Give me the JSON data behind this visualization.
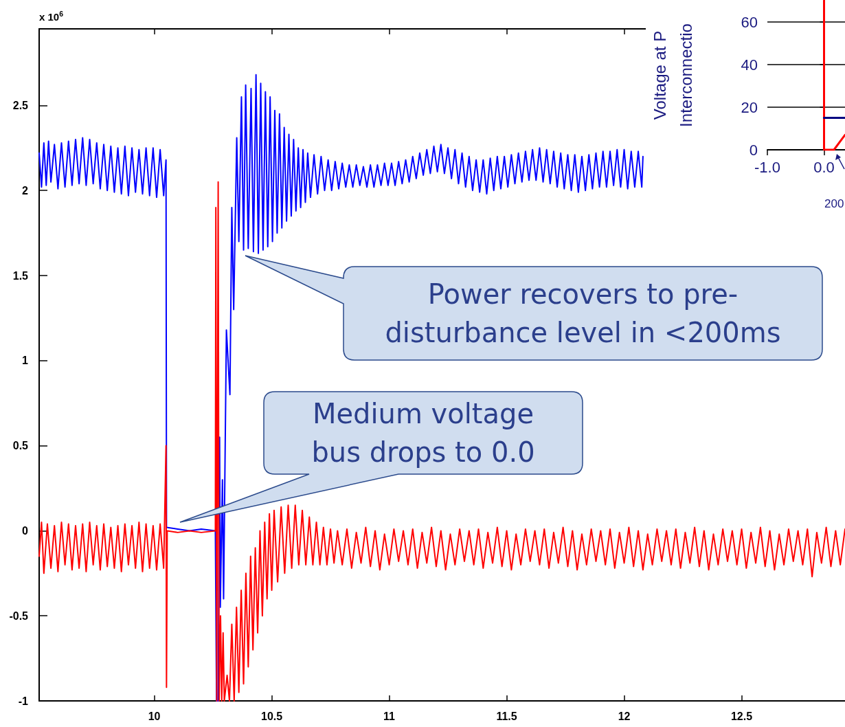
{
  "chart_data": [
    {
      "type": "line",
      "xlim": [
        9.51,
        12.94
      ],
      "xticks": [
        10,
        10.5,
        11,
        11.5,
        12,
        12.5
      ],
      "ylim": [
        -1,
        2.95
      ],
      "yticks": [
        -1,
        -0.5,
        0,
        0.5,
        1,
        1.5,
        2,
        2.5
      ],
      "marker": "none",
      "line_style": "solid",
      "annotations": [
        "x 10$^{6}$",
        "Power recovers to pre-disturbance level in <200ms",
        "Medium voltage bus drops to 0.0"
      ],
      "series": [
        {
          "color": "#0000ff",
          "x": [
            9.51,
            9.52,
            9.53,
            9.54,
            9.55,
            9.56,
            9.575,
            9.59,
            9.605,
            9.62,
            9.635,
            9.65,
            9.665,
            9.68,
            9.695,
            9.71,
            9.725,
            9.74,
            9.755,
            9.77,
            9.785,
            9.8,
            9.815,
            9.83,
            9.845,
            9.86,
            9.875,
            9.89,
            9.905,
            9.92,
            9.935,
            9.95,
            9.965,
            9.98,
            9.995,
            10.01,
            10.025,
            10.04,
            10.05,
            10.052,
            10.1,
            10.15,
            10.2,
            10.26,
            10.265,
            10.272,
            10.278,
            10.281,
            10.29,
            10.295,
            10.307,
            10.322,
            10.33,
            10.338,
            10.351,
            10.36,
            10.371,
            10.38,
            10.389,
            10.4,
            10.412,
            10.422,
            10.433,
            10.443,
            10.453,
            10.463,
            10.473,
            10.483,
            10.493,
            10.503,
            10.513,
            10.523,
            10.533,
            10.543,
            10.553,
            10.563,
            10.573,
            10.583,
            10.593,
            10.603,
            10.613,
            10.623,
            10.633,
            10.643,
            10.653,
            10.665,
            10.68,
            10.695,
            10.71,
            10.725,
            10.74,
            10.755,
            10.77,
            10.785,
            10.8,
            10.815,
            10.83,
            10.845,
            10.86,
            10.875,
            10.89,
            10.905,
            10.92,
            10.935,
            10.95,
            10.965,
            10.98,
            10.995,
            11.01,
            11.025,
            11.04,
            11.055,
            11.07,
            11.085,
            11.1,
            11.115,
            11.13,
            11.145,
            11.16,
            11.175,
            11.19,
            11.205,
            11.22,
            11.235,
            11.25,
            11.265,
            11.28,
            11.295,
            11.31,
            11.325,
            11.34,
            11.355,
            11.37,
            11.385,
            11.4,
            11.415,
            11.43,
            11.445,
            11.46,
            11.475,
            11.49,
            11.505,
            11.52,
            11.535,
            11.55,
            11.565,
            11.58,
            11.595,
            11.61,
            11.625,
            11.64,
            11.655,
            11.67,
            11.685,
            11.7,
            11.715,
            11.73,
            11.745,
            11.76,
            11.775,
            11.79,
            11.805,
            11.82,
            11.835,
            11.85,
            11.865,
            11.88,
            11.895,
            11.91,
            11.925,
            11.94,
            11.955,
            11.97,
            11.985,
            12.0,
            12.015,
            12.03,
            12.045,
            12.06,
            12.075,
            12.08
          ],
          "values": [
            2.22,
            2.02,
            2.28,
            2.03,
            2.29,
            2.05,
            2.27,
            2.01,
            2.28,
            2.02,
            2.29,
            2.03,
            2.3,
            2.04,
            2.31,
            2.03,
            2.3,
            2.04,
            2.28,
            2.01,
            2.27,
            2.0,
            2.26,
            1.99,
            2.25,
            1.98,
            2.26,
            1.97,
            2.25,
            1.99,
            2.24,
            1.98,
            2.25,
            1.97,
            2.25,
            1.96,
            2.24,
            1.97,
            2.18,
            0.02,
            0.01,
            0.0,
            0.01,
            0.0,
            -1.0,
            -1.0,
            0.55,
            -0.45,
            0.3,
            -0.4,
            1.18,
            0.8,
            1.9,
            1.3,
            2.31,
            1.7,
            2.55,
            1.65,
            2.62,
            1.66,
            2.6,
            1.64,
            2.68,
            1.63,
            2.63,
            1.65,
            2.58,
            1.67,
            2.55,
            1.7,
            2.47,
            1.75,
            2.45,
            1.78,
            2.37,
            1.82,
            2.33,
            1.85,
            2.3,
            1.88,
            2.25,
            1.9,
            2.24,
            1.93,
            2.22,
            1.96,
            2.21,
            1.98,
            2.2,
            2.0,
            2.18,
            2.0,
            2.17,
            2.01,
            2.16,
            2.02,
            2.15,
            2.02,
            2.15,
            2.03,
            2.14,
            2.02,
            2.15,
            2.02,
            2.15,
            2.03,
            2.16,
            2.03,
            2.16,
            2.03,
            2.17,
            2.04,
            2.18,
            2.05,
            2.2,
            2.07,
            2.22,
            2.09,
            2.24,
            2.1,
            2.26,
            2.11,
            2.27,
            2.1,
            2.25,
            2.07,
            2.24,
            2.04,
            2.22,
            2.02,
            2.2,
            2.0,
            2.18,
            1.99,
            2.18,
            1.98,
            2.19,
            2.0,
            2.2,
            2.01,
            2.2,
            2.02,
            2.21,
            2.04,
            2.22,
            2.05,
            2.23,
            2.06,
            2.24,
            2.06,
            2.25,
            2.05,
            2.24,
            2.04,
            2.23,
            2.02,
            2.22,
            2.01,
            2.21,
            2.0,
            2.21,
            1.99,
            2.2,
            2.0,
            2.21,
            2.01,
            2.22,
            2.02,
            2.23,
            2.02,
            2.23,
            2.03,
            2.24,
            2.02,
            2.24,
            2.01,
            2.23,
            2.02,
            2.23,
            2.02,
            2.2
          ]
        },
        {
          "color": "#ff0000",
          "x": [
            9.51,
            9.52,
            9.53,
            9.545,
            9.56,
            9.575,
            9.59,
            9.605,
            9.62,
            9.635,
            9.65,
            9.665,
            9.68,
            9.695,
            9.71,
            9.725,
            9.74,
            9.755,
            9.77,
            9.785,
            9.8,
            9.815,
            9.83,
            9.845,
            9.86,
            9.875,
            9.89,
            9.905,
            9.92,
            9.935,
            9.95,
            9.965,
            9.98,
            9.995,
            10.01,
            10.025,
            10.04,
            10.05,
            10.052,
            10.055,
            10.1,
            10.15,
            10.2,
            10.26,
            10.262,
            10.266,
            10.272,
            10.276,
            10.282,
            10.287,
            10.293,
            10.298,
            10.31,
            10.32,
            10.33,
            10.34,
            10.35,
            10.36,
            10.37,
            10.38,
            10.39,
            10.4,
            10.41,
            10.42,
            10.43,
            10.44,
            10.45,
            10.46,
            10.47,
            10.48,
            10.49,
            10.5,
            10.51,
            10.525,
            10.54,
            10.555,
            10.57,
            10.585,
            10.6,
            10.615,
            10.63,
            10.645,
            10.66,
            10.675,
            10.69,
            10.705,
            10.72,
            10.735,
            10.75,
            10.765,
            10.78,
            10.8,
            10.82,
            10.84,
            10.86,
            10.88,
            10.9,
            10.92,
            10.94,
            10.96,
            10.98,
            11.0,
            11.02,
            11.04,
            11.06,
            11.08,
            11.1,
            11.12,
            11.14,
            11.16,
            11.18,
            11.2,
            11.22,
            11.24,
            11.26,
            11.28,
            11.3,
            11.32,
            11.34,
            11.36,
            11.38,
            11.4,
            11.42,
            11.44,
            11.46,
            11.48,
            11.5,
            11.52,
            11.54,
            11.56,
            11.58,
            11.6,
            11.62,
            11.64,
            11.66,
            11.68,
            11.7,
            11.72,
            11.74,
            11.76,
            11.78,
            11.8,
            11.82,
            11.84,
            11.86,
            11.88,
            11.9,
            11.92,
            11.94,
            11.96,
            11.98,
            12.0,
            12.02,
            12.04,
            12.06,
            12.08,
            12.1,
            12.12,
            12.14,
            12.16,
            12.18,
            12.2,
            12.22,
            12.24,
            12.26,
            12.28,
            12.3,
            12.32,
            12.34,
            12.36,
            12.38,
            12.4,
            12.42,
            12.44,
            12.46,
            12.48,
            12.5,
            12.52,
            12.54,
            12.56,
            12.58,
            12.6,
            12.62,
            12.64,
            12.66,
            12.68,
            12.7,
            12.72,
            12.74,
            12.76,
            12.78,
            12.8,
            12.82,
            12.84,
            12.86,
            12.88,
            12.9,
            12.92,
            12.94
          ],
          "values": [
            -0.15,
            0.05,
            -0.25,
            0.04,
            -0.22,
            0.03,
            -0.24,
            0.05,
            -0.2,
            0.04,
            -0.23,
            0.03,
            -0.22,
            0.04,
            -0.24,
            0.05,
            -0.2,
            0.03,
            -0.23,
            0.04,
            -0.21,
            0.02,
            -0.22,
            0.03,
            -0.24,
            0.04,
            -0.2,
            0.03,
            -0.22,
            0.05,
            -0.24,
            0.04,
            -0.22,
            0.03,
            -0.23,
            0.04,
            -0.22,
            0.5,
            -0.92,
            0.0,
            -0.01,
            0.0,
            -0.01,
            0.0,
            1.9,
            -1.0,
            2.05,
            -1.0,
            -0.5,
            -1.0,
            -0.6,
            -1.0,
            -0.85,
            -1.0,
            -0.55,
            -1.0,
            -0.45,
            -0.95,
            -0.35,
            -0.9,
            -0.25,
            -0.8,
            -0.15,
            -0.7,
            -0.1,
            -0.6,
            0.0,
            -0.5,
            0.05,
            -0.4,
            0.1,
            -0.35,
            0.12,
            -0.3,
            0.14,
            -0.25,
            0.15,
            -0.22,
            0.15,
            -0.2,
            0.12,
            -0.2,
            0.08,
            -0.2,
            0.05,
            -0.2,
            0.02,
            -0.2,
            0.01,
            -0.19,
            0.0,
            -0.2,
            0.01,
            -0.22,
            -0.01,
            -0.19,
            0.02,
            -0.21,
            0.0,
            -0.23,
            -0.02,
            -0.2,
            0.01,
            -0.18,
            0.0,
            -0.2,
            0.01,
            -0.22,
            -0.01,
            -0.19,
            0.02,
            -0.21,
            0.0,
            -0.23,
            -0.02,
            -0.2,
            0.01,
            -0.18,
            0.0,
            -0.2,
            0.01,
            -0.22,
            -0.01,
            -0.19,
            0.02,
            -0.21,
            0.0,
            -0.23,
            -0.02,
            -0.2,
            0.01,
            -0.18,
            0.0,
            -0.2,
            0.01,
            -0.22,
            -0.01,
            -0.19,
            0.02,
            -0.21,
            0.0,
            -0.23,
            -0.02,
            -0.2,
            0.01,
            -0.18,
            0.0,
            -0.2,
            0.01,
            -0.22,
            -0.01,
            -0.19,
            0.02,
            -0.21,
            0.0,
            -0.23,
            -0.02,
            -0.2,
            0.01,
            -0.18,
            0.0,
            -0.2,
            0.01,
            -0.22,
            -0.01,
            -0.19,
            0.02,
            -0.21,
            0.0,
            -0.23,
            -0.02,
            -0.2,
            0.01,
            -0.18,
            0.0,
            -0.2,
            0.01,
            -0.22,
            -0.01,
            -0.19,
            0.02,
            -0.21,
            0.0,
            -0.23,
            -0.02,
            -0.2,
            0.01,
            -0.18,
            0.0,
            -0.2,
            0.01,
            -0.27,
            -0.01,
            -0.19,
            0.02,
            -0.21,
            0.0,
            -0.2,
            0.01
          ]
        }
      ]
    },
    {
      "type": "line",
      "ylabel": "Voltage at P\nInterconnectio",
      "xlim": [
        -1.0,
        0.37
      ],
      "xticks": [
        {
          "value": -1,
          "label": "-1.0"
        },
        {
          "value": 0,
          "label": "0.0"
        }
      ],
      "ylim": [
        0,
        70
      ],
      "yticks": [
        0,
        20,
        40,
        60
      ],
      "grid": "y",
      "marker": "none",
      "line_style": "solid",
      "annotations": [
        "200"
      ],
      "series": [
        {
          "color": "#ff0000",
          "x": [
            0,
            0,
            0.175,
            0.37
          ],
          "values": [
            70,
            0,
            0,
            7
          ]
        },
        {
          "color": "#000080",
          "x": [
            0,
            0.37
          ],
          "values": [
            15,
            15
          ]
        }
      ]
    }
  ]
}
